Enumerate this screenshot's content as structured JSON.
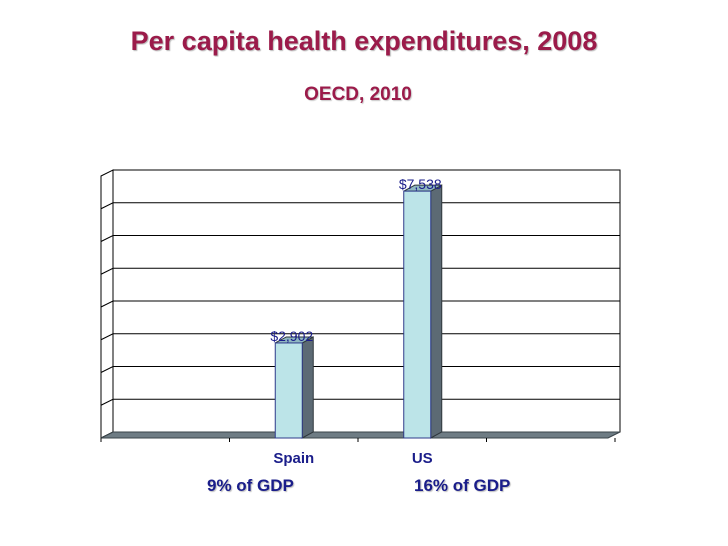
{
  "chart_data": {
    "type": "bar",
    "title": "Per capita health expenditures, 2008",
    "subtitle": "OECD, 2010",
    "categories": [
      "Spain",
      "US"
    ],
    "values": [
      2902,
      7538
    ],
    "data_labels": [
      "$2,902",
      "$7,538"
    ],
    "ylim": [
      0,
      8000
    ],
    "xlabel": "",
    "ylabel": "",
    "grid": true,
    "legend": "none",
    "bar_color": "#bce4e8",
    "side_color": "#5c6a74",
    "grid_color": "#000000"
  },
  "annotations": {
    "spain_gdp": "9% of GDP",
    "us_gdp": "16% of GDP"
  }
}
